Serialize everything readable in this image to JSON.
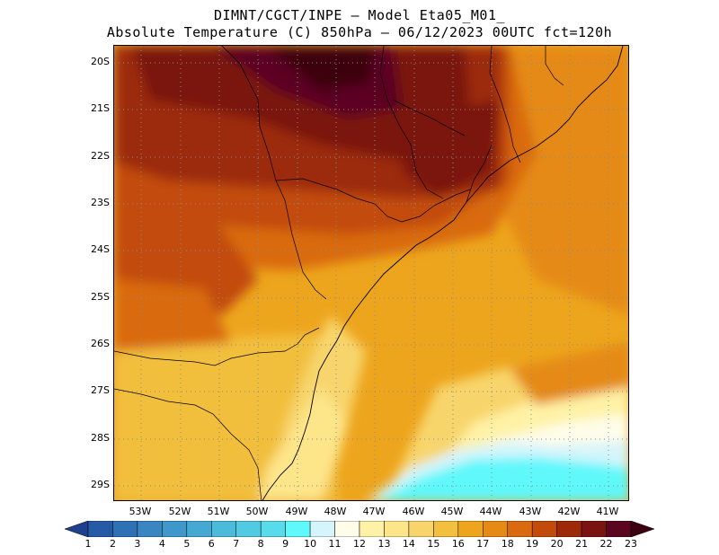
{
  "title": {
    "line1": "DIMNT/CGCT/INPE –  Model Eta05_M01_",
    "line2": "Absolute Temperature (C) 850hPa –  06/12/2023 00UTC fct=120h"
  },
  "latitude_labels": [
    "20S",
    "21S",
    "22S",
    "23S",
    "24S",
    "25S",
    "26S",
    "27S",
    "28S",
    "29S"
  ],
  "longitude_labels": [
    "53W",
    "52W",
    "51W",
    "50W",
    "49W",
    "48W",
    "47W",
    "46W",
    "45W",
    "44W",
    "43W",
    "42W",
    "41W"
  ],
  "colorbar": {
    "labels": [
      "1",
      "2",
      "3",
      "4",
      "5",
      "6",
      "7",
      "8",
      "9",
      "10",
      "11",
      "12",
      "13",
      "14",
      "15",
      "16",
      "17",
      "18",
      "19",
      "20",
      "21",
      "22",
      "23"
    ],
    "colors": [
      "#1f3f8f",
      "#245aa6",
      "#2f71b5",
      "#3a86c2",
      "#3f98cc",
      "#45a9d4",
      "#4cbada",
      "#52cbe2",
      "#58dbea",
      "#5ff8fb",
      "#d5f4fb",
      "#fffdea",
      "#fff2a6",
      "#fde58a",
      "#f8d56c",
      "#f2bf3e",
      "#eda51d",
      "#e58a16",
      "#d96a10",
      "#c24b0c",
      "#9c2a08",
      "#7a1410",
      "#5c0520",
      "#3c0010"
    ]
  }
}
